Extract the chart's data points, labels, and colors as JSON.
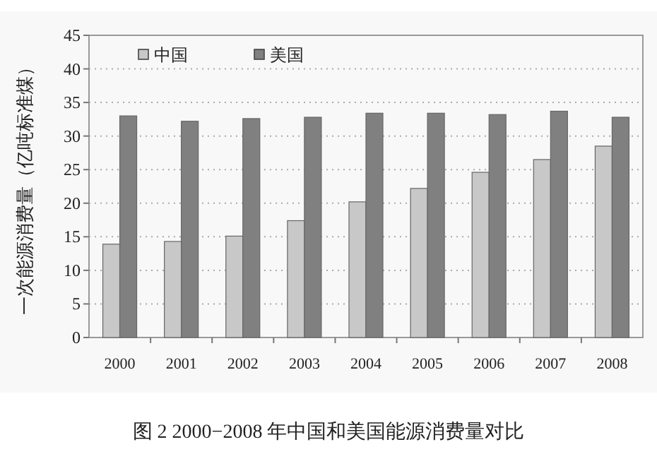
{
  "chart_data": {
    "type": "bar",
    "title": "图 2  2000−2008 年中国和美国能源消费量对比",
    "ylabel": "一次能源消费量（亿吨标准煤）",
    "categories": [
      "2000",
      "2001",
      "2002",
      "2003",
      "2004",
      "2005",
      "2006",
      "2007",
      "2008"
    ],
    "series": [
      {
        "name": "中国",
        "color": "#c8c8c8",
        "values": [
          13.9,
          14.3,
          15.1,
          17.4,
          20.2,
          22.2,
          24.6,
          26.5,
          28.5
        ]
      },
      {
        "name": "美国",
        "color": "#808080",
        "values": [
          33.0,
          32.2,
          32.6,
          32.8,
          33.4,
          33.4,
          33.2,
          33.7,
          32.8
        ]
      }
    ],
    "ylim": [
      0,
      45
    ],
    "yticks": [
      0,
      5,
      10,
      15,
      20,
      25,
      30,
      35,
      40,
      45
    ],
    "grid": "y",
    "legend": "top left"
  }
}
